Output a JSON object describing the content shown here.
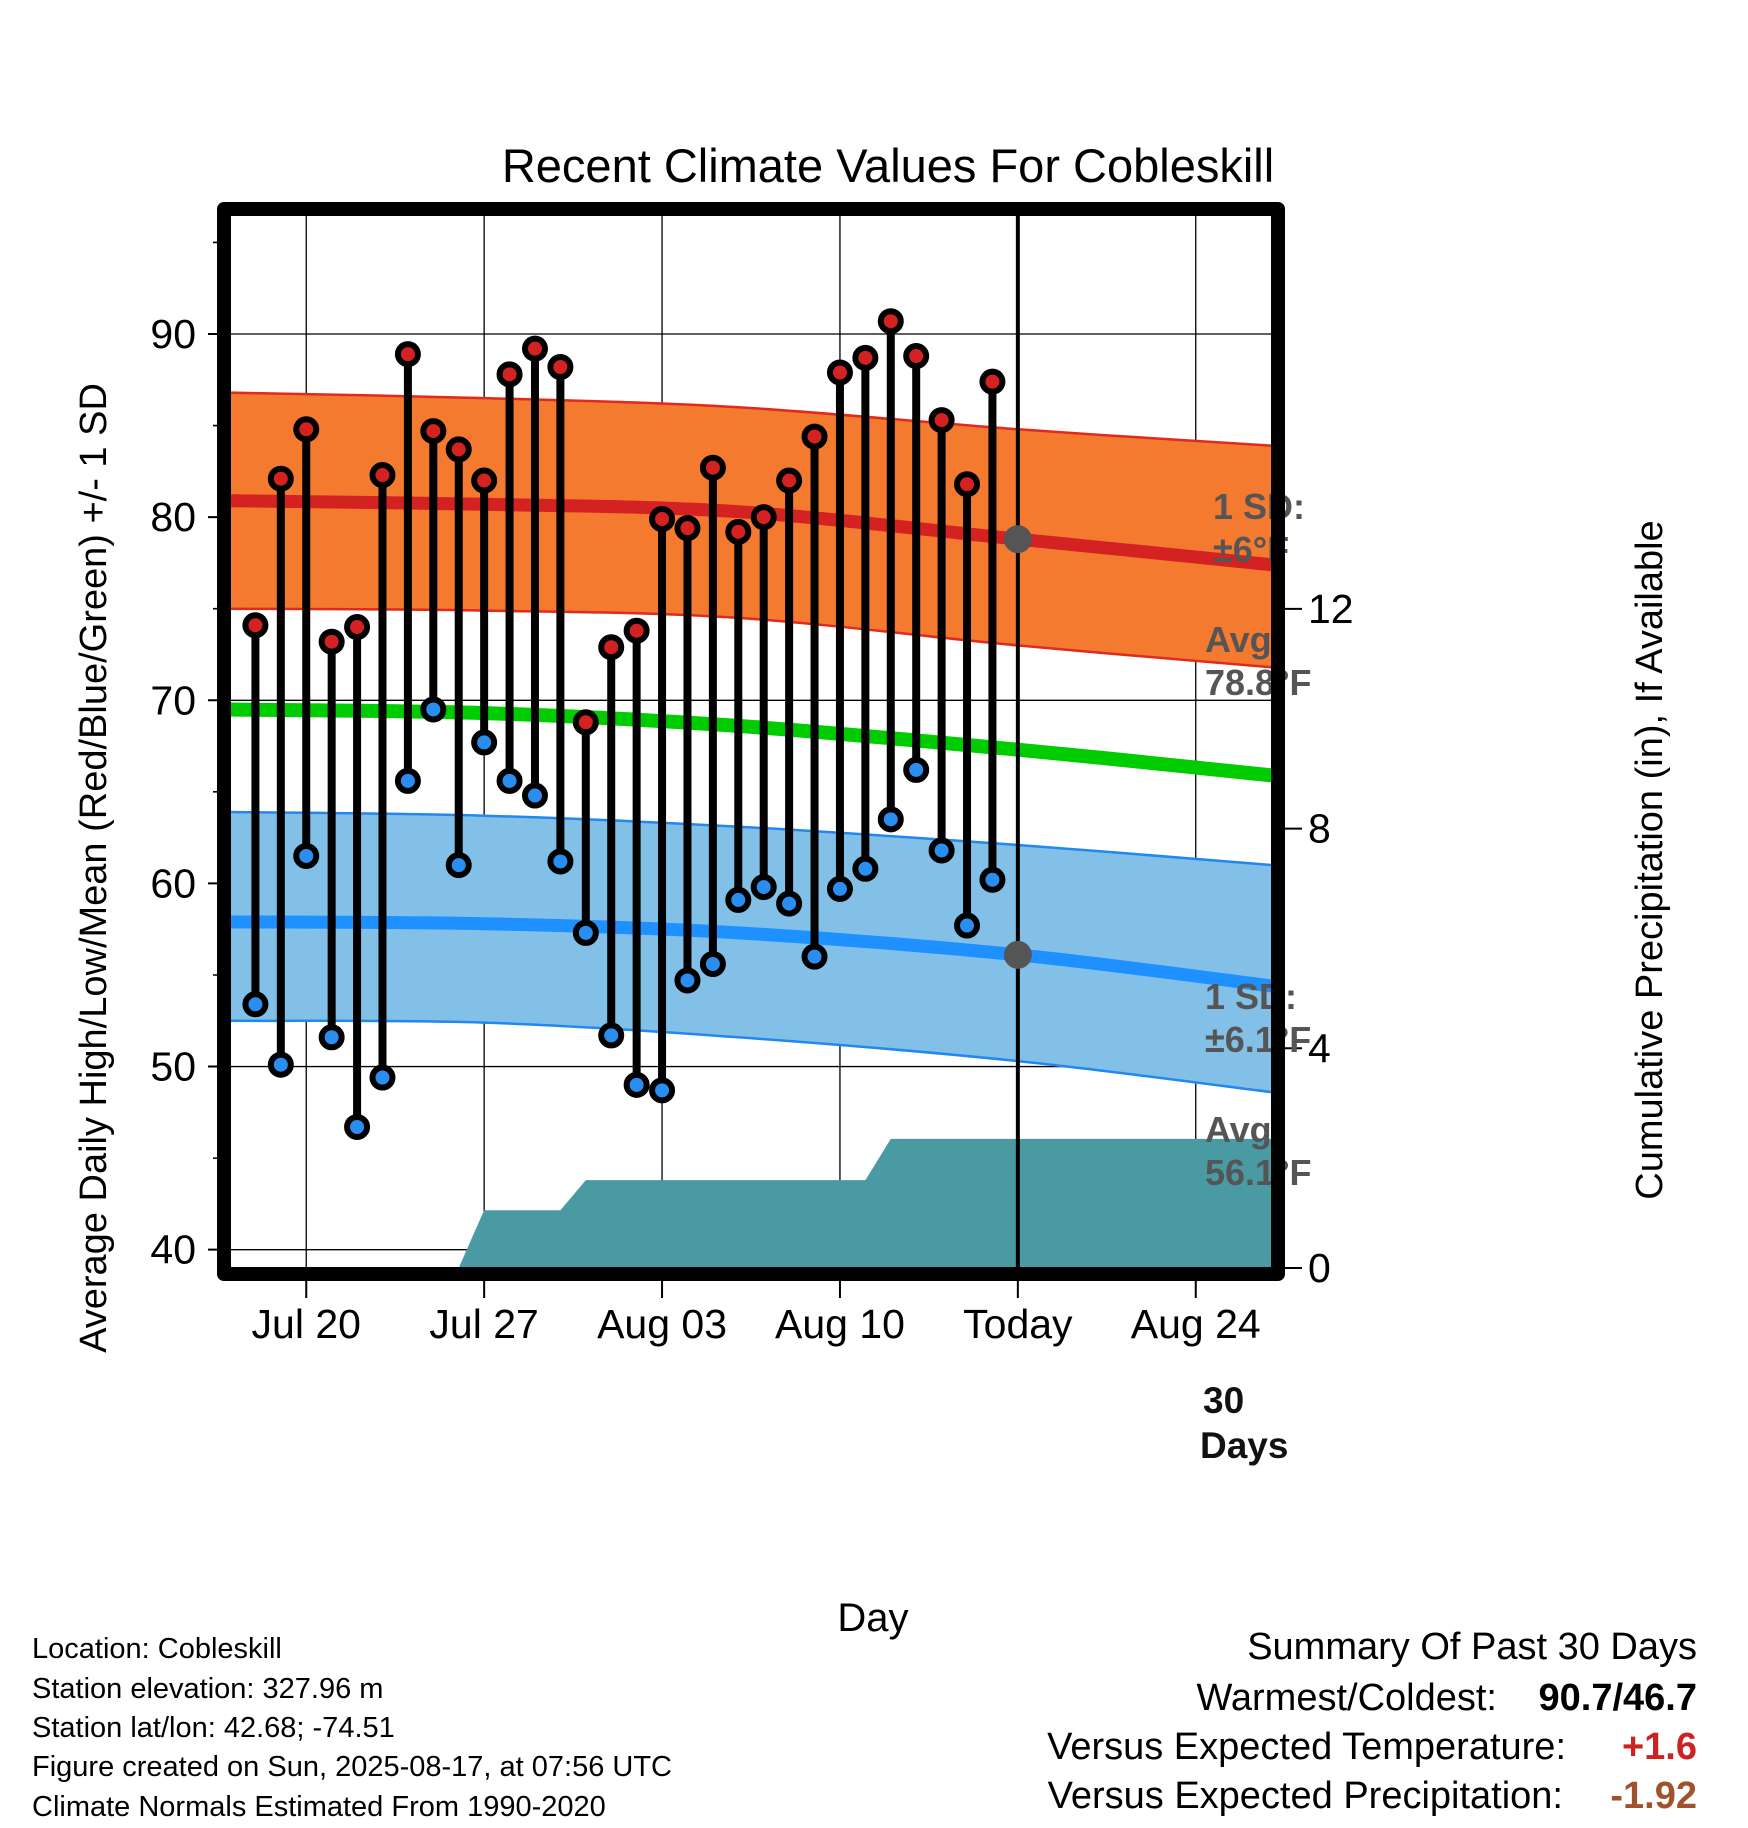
{
  "chart_data": {
    "type": "line",
    "title": "Recent Climate Values For Cobleskill",
    "xlabel": "Day",
    "ylabel_left": "Average Daily High/Low/Mean (Red/Blue/Green) +/- 1 SD",
    "ylabel_right": "Cumulative Precipitation (in), If Available",
    "ylim": [
      39,
      96.5
    ],
    "y2lim": [
      0,
      19.17
    ],
    "xlim": [
      "2025-07-17",
      "2025-08-27"
    ],
    "x_ticks": [
      {
        "date": "2025-07-20",
        "label": "Jul 20"
      },
      {
        "date": "2025-07-27",
        "label": "Jul 27"
      },
      {
        "date": "2025-08-03",
        "label": "Aug 03"
      },
      {
        "date": "2025-08-10",
        "label": "Aug 10"
      },
      {
        "date": "2025-08-17",
        "label": "Today"
      },
      {
        "date": "2025-08-24",
        "label": "Aug 24"
      }
    ],
    "y_ticks": [
      "40",
      "50",
      "60",
      "70",
      "80",
      "90"
    ],
    "y_minor_ticks": [
      45,
      55,
      65,
      75,
      85,
      95
    ],
    "y2_ticks": [
      "0",
      "4",
      "8",
      "12"
    ],
    "grid": true,
    "today": "2025-08-17",
    "days": [
      "2025-07-18",
      "2025-07-19",
      "2025-07-20",
      "2025-07-21",
      "2025-07-22",
      "2025-07-23",
      "2025-07-24",
      "2025-07-25",
      "2025-07-26",
      "2025-07-27",
      "2025-07-28",
      "2025-07-29",
      "2025-07-30",
      "2025-07-31",
      "2025-08-01",
      "2025-08-02",
      "2025-08-03",
      "2025-08-04",
      "2025-08-05",
      "2025-08-06",
      "2025-08-07",
      "2025-08-08",
      "2025-08-09",
      "2025-08-10",
      "2025-08-11",
      "2025-08-12",
      "2025-08-13",
      "2025-08-14",
      "2025-08-15",
      "2025-08-16"
    ],
    "highs": [
      74.1,
      82.1,
      84.8,
      73.2,
      74.0,
      82.3,
      88.9,
      84.7,
      83.7,
      82.0,
      87.8,
      89.2,
      88.2,
      68.8,
      72.9,
      73.8,
      79.9,
      79.4,
      82.7,
      79.2,
      80.0,
      82.0,
      84.4,
      87.9,
      88.7,
      90.7,
      88.8,
      85.3,
      81.8,
      87.4
    ],
    "lows": [
      53.4,
      50.1,
      61.5,
      51.6,
      46.7,
      49.4,
      65.6,
      69.5,
      61.0,
      67.7,
      65.6,
      64.8,
      61.2,
      57.3,
      51.7,
      49.0,
      48.7,
      54.7,
      55.6,
      59.1,
      59.8,
      58.9,
      56.0,
      59.7,
      60.8,
      63.5,
      66.2,
      61.8,
      57.7,
      60.2
    ],
    "normals": {
      "high_mean": {
        "x": [
          "2025-07-17",
          "2025-07-27",
          "2025-08-06",
          "2025-08-17",
          "2025-08-27"
        ],
        "y": [
          80.9,
          80.7,
          80.3,
          78.8,
          77.4
        ]
      },
      "high_upper": {
        "x": [
          "2025-07-17",
          "2025-07-27",
          "2025-08-06",
          "2025-08-17",
          "2025-08-27"
        ],
        "y": [
          86.8,
          86.5,
          86.0,
          84.8,
          83.9
        ]
      },
      "high_lower": {
        "x": [
          "2025-07-17",
          "2025-07-27",
          "2025-08-06",
          "2025-08-17",
          "2025-08-27"
        ],
        "y": [
          75.0,
          74.9,
          74.5,
          73.0,
          71.8
        ]
      },
      "mean": {
        "x": [
          "2025-07-17",
          "2025-07-27",
          "2025-08-06",
          "2025-08-17",
          "2025-08-27"
        ],
        "y": [
          69.5,
          69.3,
          68.6,
          67.3,
          65.9
        ]
      },
      "low_mean": {
        "x": [
          "2025-07-17",
          "2025-07-27",
          "2025-08-06",
          "2025-08-17",
          "2025-08-27"
        ],
        "y": [
          57.9,
          57.8,
          57.3,
          56.1,
          54.4
        ]
      },
      "low_upper": {
        "x": [
          "2025-07-17",
          "2025-07-27",
          "2025-08-06",
          "2025-08-17",
          "2025-08-27"
        ],
        "y": [
          63.9,
          63.7,
          63.1,
          62.1,
          61.0
        ]
      },
      "low_lower": {
        "x": [
          "2025-07-17",
          "2025-07-27",
          "2025-08-06",
          "2025-08-17",
          "2025-08-27"
        ],
        "y": [
          52.5,
          52.4,
          51.6,
          50.3,
          48.6
        ]
      }
    },
    "precipitation_cumulative": {
      "x": [
        "2025-07-26",
        "2025-07-27",
        "2025-07-30",
        "2025-07-31",
        "2025-08-11",
        "2025-08-12",
        "2025-08-27"
      ],
      "y": [
        0.0,
        1.05,
        1.05,
        1.6,
        1.6,
        2.35,
        2.35
      ]
    },
    "annotations": {
      "high_sd_line1": "1 SD:",
      "high_sd_line2": "±6°F",
      "high_avg_line1": "Avg:",
      "high_avg_line2": "78.8°F",
      "high_avg_value": 78.8,
      "low_sd_line1": "1 SD:",
      "low_sd_line2": "±6.1°F",
      "low_avg_line1": "Avg:",
      "low_avg_line2": "56.1°F",
      "low_avg_value": 56.1,
      "days_line1": "30",
      "days_line2": "Days"
    },
    "colors": {
      "high_band": "#f47a30",
      "high_edge": "#e02a1e",
      "high_mean": "#d42222",
      "mean_line": "#00cc00",
      "low_band": "#82c0e8",
      "low_edge": "#2288ee",
      "low_mean": "#1e90ff",
      "precip": "#4a9aa4",
      "high_dot": "#d42222",
      "low_dot": "#2a8ef0",
      "avg_dot": "#555555"
    }
  },
  "info": {
    "location": "Location: Cobleskill",
    "elevation": "Station elevation: 327.96 m",
    "latlon": "Station lat/lon: 42.68; -74.51",
    "created": "Figure created on Sun, 2025-08-17, at 07:56 UTC",
    "normals": "Climate Normals Estimated From 1990-2020"
  },
  "summary": {
    "heading": "Summary Of Past 30 Days",
    "warm_cold_label": "Warmest/Coldest:",
    "warm_cold_value": "90.7/46.7",
    "temp_label": "Versus Expected Temperature:",
    "temp_value": "+1.6",
    "temp_color": "#cc2222",
    "precip_label": "Versus Expected Precipitation:",
    "precip_value": "-1.92",
    "precip_color": "#a0522d"
  }
}
